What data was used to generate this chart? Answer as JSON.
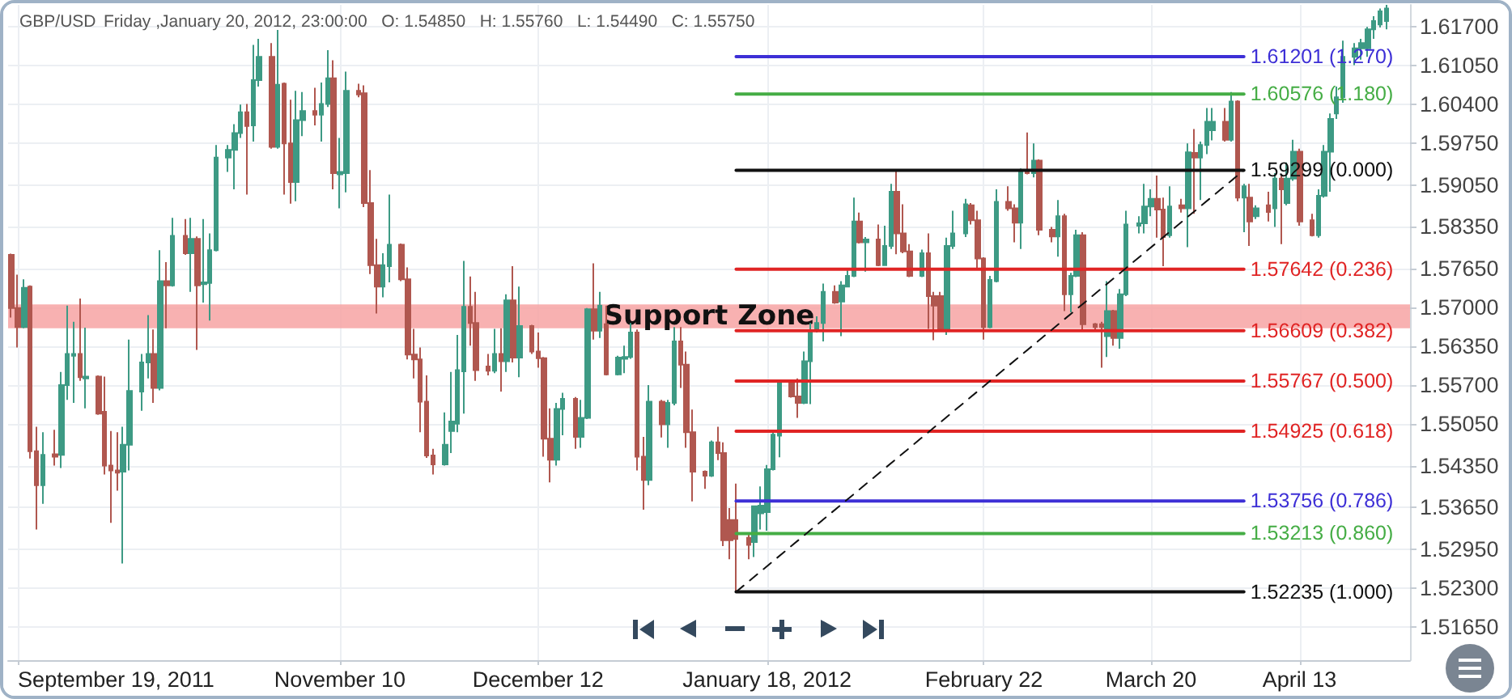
{
  "chart_data": {
    "type": "candlestick",
    "title": "GBP/USD",
    "subtitle": "Friday ,January 20, 2012, 23:00:00   O: 1.54850   H: 1.55760   L: 1.54490   C: 1.55750",
    "x": [
      "2011-09-18",
      "2011-09-19",
      "2011-09-20",
      "2011-09-21",
      "2011-09-22",
      "2011-09-23",
      "2011-09-25",
      "2011-09-26",
      "2011-09-27",
      "2011-09-28",
      "2011-09-29",
      "2011-09-30",
      "2011-10-02",
      "2011-10-03",
      "2011-10-04",
      "2011-10-05",
      "2011-10-06",
      "2011-10-07",
      "2011-10-09",
      "2011-10-10",
      "2011-10-11",
      "2011-10-12",
      "2011-10-13",
      "2011-10-14",
      "2011-10-16",
      "2011-10-17",
      "2011-10-18",
      "2011-10-19",
      "2011-10-20",
      "2011-10-21",
      "2011-10-23",
      "2011-10-24",
      "2011-10-25",
      "2011-10-26",
      "2011-10-27",
      "2011-10-28",
      "2011-10-30",
      "2011-10-31",
      "2011-11-01",
      "2011-11-02",
      "2011-11-03",
      "2011-11-04",
      "2011-11-06",
      "2011-11-07",
      "2011-11-08",
      "2011-11-09",
      "2011-11-10",
      "2011-11-11",
      "2011-11-13",
      "2011-11-14",
      "2011-11-15",
      "2011-11-16",
      "2011-11-17",
      "2011-11-18",
      "2011-11-20",
      "2011-11-21",
      "2011-11-22",
      "2011-11-23",
      "2011-11-24",
      "2011-11-25",
      "2011-11-27",
      "2011-11-28",
      "2011-11-29",
      "2011-11-30",
      "2011-12-01",
      "2011-12-02",
      "2011-12-04",
      "2011-12-05",
      "2011-12-06",
      "2011-12-07",
      "2011-12-08",
      "2011-12-09",
      "2011-12-11",
      "2011-12-12",
      "2011-12-13",
      "2011-12-14",
      "2011-12-15",
      "2011-12-16",
      "2011-12-18",
      "2011-12-19",
      "2011-12-20",
      "2011-12-21",
      "2011-12-22",
      "2011-12-23",
      "2011-12-25",
      "2011-12-26",
      "2011-12-27",
      "2011-12-28",
      "2011-12-29",
      "2011-12-30",
      "2012-01-01",
      "2012-01-02",
      "2012-01-03",
      "2012-01-04",
      "2012-01-05",
      "2012-01-06",
      "2012-01-08",
      "2012-01-09",
      "2012-01-10",
      "2012-01-11",
      "2012-01-12",
      "2012-01-13",
      "2012-01-15",
      "2012-01-16",
      "2012-01-17",
      "2012-01-18",
      "2012-01-19",
      "2012-01-20",
      "2012-01-22",
      "2012-01-23",
      "2012-01-24",
      "2012-01-25",
      "2012-01-26",
      "2012-01-27",
      "2012-01-29",
      "2012-01-30",
      "2012-01-31",
      "2012-02-01",
      "2012-02-02",
      "2012-02-03",
      "2012-02-05",
      "2012-02-06",
      "2012-02-07",
      "2012-02-08",
      "2012-02-09",
      "2012-02-10",
      "2012-02-12",
      "2012-02-13",
      "2012-02-14",
      "2012-02-15",
      "2012-02-16",
      "2012-02-17",
      "2012-02-19",
      "2012-02-20",
      "2012-02-21",
      "2012-02-22",
      "2012-02-23",
      "2012-02-24",
      "2012-02-26",
      "2012-02-27",
      "2012-02-28",
      "2012-02-29",
      "2012-03-01",
      "2012-03-02",
      "2012-03-04",
      "2012-03-05",
      "2012-03-06",
      "2012-03-07",
      "2012-03-08",
      "2012-03-09",
      "2012-03-11",
      "2012-03-12",
      "2012-03-13",
      "2012-03-14",
      "2012-03-15",
      "2012-03-16",
      "2012-03-18",
      "2012-03-19",
      "2012-03-20",
      "2012-03-21",
      "2012-03-22",
      "2012-03-23",
      "2012-03-25",
      "2012-03-26",
      "2012-03-27",
      "2012-03-28",
      "2012-03-29",
      "2012-03-30",
      "2012-04-01",
      "2012-04-02",
      "2012-04-03",
      "2012-04-04",
      "2012-04-05",
      "2012-04-06",
      "2012-04-08",
      "2012-04-09",
      "2012-04-10",
      "2012-04-11",
      "2012-04-12",
      "2012-04-13",
      "2012-04-15",
      "2012-04-16",
      "2012-04-17",
      "2012-04-18",
      "2012-04-19",
      "2012-04-20",
      "2012-04-22",
      "2012-04-23",
      "2012-04-24",
      "2012-04-25",
      "2012-04-26",
      "2012-04-27"
    ],
    "ohlc": [
      [
        1.5788,
        1.579,
        1.5683,
        1.5699
      ],
      [
        1.5699,
        1.5755,
        1.5633,
        1.5667
      ],
      [
        1.5667,
        1.5747,
        1.5665,
        1.5733
      ],
      [
        1.5735,
        1.5737,
        1.5447,
        1.5459
      ],
      [
        1.5459,
        1.55,
        1.5328,
        1.5402
      ],
      [
        1.5402,
        1.5491,
        1.5371,
        1.5453
      ],
      [
        1.5454,
        1.5495,
        1.5435,
        1.545
      ],
      [
        1.5453,
        1.5592,
        1.5431,
        1.557
      ],
      [
        1.557,
        1.5703,
        1.5545,
        1.5622
      ],
      [
        1.5619,
        1.5676,
        1.554,
        1.5622
      ],
      [
        1.5622,
        1.5715,
        1.5577,
        1.5583
      ],
      [
        1.5581,
        1.5666,
        1.5531,
        1.5584
      ],
      [
        1.5584,
        1.5586,
        1.552,
        1.5522
      ],
      [
        1.5525,
        1.5584,
        1.542,
        1.5435
      ],
      [
        1.5435,
        1.5493,
        1.5339,
        1.5427
      ],
      [
        1.5427,
        1.5491,
        1.5393,
        1.5423
      ],
      [
        1.5425,
        1.55,
        1.5271,
        1.547
      ],
      [
        1.547,
        1.5646,
        1.5427,
        1.556
      ],
      [
        1.5559,
        1.5622,
        1.5527,
        1.5608
      ],
      [
        1.5608,
        1.5687,
        1.5581,
        1.5622
      ],
      [
        1.5622,
        1.5663,
        1.554,
        1.5565
      ],
      [
        1.5565,
        1.5796,
        1.5561,
        1.5744
      ],
      [
        1.5744,
        1.5776,
        1.5665,
        1.5737
      ],
      [
        1.5737,
        1.585,
        1.5735,
        1.582
      ],
      [
        1.582,
        1.5848,
        1.5788,
        1.5791
      ],
      [
        1.5791,
        1.585,
        1.5726,
        1.5815
      ],
      [
        1.5815,
        1.5819,
        1.5629,
        1.5737
      ],
      [
        1.5739,
        1.5848,
        1.5708,
        1.5742
      ],
      [
        1.5741,
        1.5824,
        1.5678,
        1.5796
      ],
      [
        1.5796,
        1.5972,
        1.5794,
        1.5951
      ],
      [
        1.5951,
        1.5972,
        1.5927,
        1.5964
      ],
      [
        1.5964,
        1.6007,
        1.5898,
        1.5992
      ],
      [
        1.5992,
        1.604,
        1.5984,
        1.6027
      ],
      [
        1.6027,
        1.6041,
        1.5889,
        1.6004
      ],
      [
        1.6005,
        1.614,
        1.5978,
        1.6081
      ],
      [
        1.6081,
        1.615,
        1.607,
        1.612
      ],
      [
        1.612,
        1.6143,
        1.5966,
        1.5969
      ],
      [
        1.5969,
        1.6165,
        1.5966,
        1.6073
      ],
      [
        1.6075,
        1.6077,
        1.5889,
        1.5975
      ],
      [
        1.5975,
        1.6048,
        1.5874,
        1.591
      ],
      [
        1.591,
        1.6063,
        1.5878,
        1.6014
      ],
      [
        1.6014,
        1.6061,
        1.5987,
        1.6029
      ],
      [
        1.6029,
        1.6068,
        1.6005,
        1.6023
      ],
      [
        1.6023,
        1.6077,
        1.5978,
        1.6041
      ],
      [
        1.6041,
        1.6131,
        1.6036,
        1.6084
      ],
      [
        1.6084,
        1.6114,
        1.5898,
        1.5925
      ],
      [
        1.5923,
        1.5984,
        1.5866,
        1.5927
      ],
      [
        1.5925,
        1.6095,
        1.5893,
        1.6063
      ],
      [
        1.6063,
        1.6075,
        1.6052,
        1.6057
      ],
      [
        1.6059,
        1.6072,
        1.5868,
        1.5875
      ],
      [
        1.5875,
        1.593,
        1.5756,
        1.5771
      ],
      [
        1.5771,
        1.5815,
        1.569,
        1.5735
      ],
      [
        1.5735,
        1.5791,
        1.5717,
        1.5771
      ],
      [
        1.5769,
        1.5889,
        1.5742,
        1.5805
      ],
      [
        1.5805,
        1.5807,
        1.5744,
        1.5747
      ],
      [
        1.5747,
        1.5767,
        1.5613,
        1.5621
      ],
      [
        1.5621,
        1.5664,
        1.5581,
        1.5613
      ],
      [
        1.5613,
        1.5633,
        1.5491,
        1.5542
      ],
      [
        1.5542,
        1.5586,
        1.5448,
        1.5452
      ],
      [
        1.5452,
        1.5463,
        1.542,
        1.5437
      ],
      [
        1.5437,
        1.5524,
        1.5435,
        1.547
      ],
      [
        1.5493,
        1.5592,
        1.5456,
        1.5509
      ],
      [
        1.5505,
        1.5654,
        1.5491,
        1.5595
      ],
      [
        1.5593,
        1.5778,
        1.5522,
        1.5701
      ],
      [
        1.5701,
        1.5752,
        1.5636,
        1.5674
      ],
      [
        1.5674,
        1.5726,
        1.5577,
        1.5595
      ],
      [
        1.5601,
        1.5622,
        1.5586,
        1.5594
      ],
      [
        1.5594,
        1.5664,
        1.559,
        1.5622
      ],
      [
        1.5622,
        1.5665,
        1.5559,
        1.561
      ],
      [
        1.561,
        1.5722,
        1.5592,
        1.5712
      ],
      [
        1.5712,
        1.5769,
        1.5608,
        1.5616
      ],
      [
        1.5616,
        1.5735,
        1.5583,
        1.5669
      ],
      [
        1.5669,
        1.5671,
        1.5622,
        1.5626
      ],
      [
        1.5626,
        1.5658,
        1.5599,
        1.5615
      ],
      [
        1.5615,
        1.5617,
        1.545,
        1.548
      ],
      [
        1.548,
        1.5531,
        1.5407,
        1.5445
      ],
      [
        1.5445,
        1.554,
        1.5435,
        1.553
      ],
      [
        1.553,
        1.5557,
        1.5486,
        1.5547
      ],
      [
        1.5547,
        1.555,
        1.5463,
        1.5483
      ],
      [
        1.5483,
        1.5545,
        1.5465,
        1.5515
      ],
      [
        1.5515,
        1.5699,
        1.5513,
        1.5697
      ],
      [
        1.5697,
        1.5774,
        1.5646,
        1.5661
      ],
      [
        1.5661,
        1.5726,
        1.5649,
        1.5703
      ],
      [
        1.5672,
        1.5703,
        1.5586,
        1.5588
      ],
      [
        1.5588,
        1.5619,
        1.5586,
        1.5616
      ],
      [
        1.5614,
        1.5636,
        1.559,
        1.5617
      ],
      [
        1.5617,
        1.5674,
        1.5614,
        1.5658
      ],
      [
        1.5658,
        1.5663,
        1.5427,
        1.545
      ],
      [
        1.545,
        1.5483,
        1.5361,
        1.5411
      ],
      [
        1.5411,
        1.557,
        1.5402,
        1.5542
      ],
      [
        1.5542,
        1.5545,
        1.5482,
        1.5504
      ],
      [
        1.5504,
        1.5545,
        1.5465,
        1.554
      ],
      [
        1.554,
        1.5667,
        1.5536,
        1.5643
      ],
      [
        1.5643,
        1.5667,
        1.5565,
        1.5604
      ],
      [
        1.5604,
        1.5626,
        1.5465,
        1.5491
      ],
      [
        1.5491,
        1.5529,
        1.5375,
        1.5425
      ],
      [
        1.5425,
        1.5427,
        1.5396,
        1.5418
      ],
      [
        1.5418,
        1.5477,
        1.5416,
        1.5474
      ],
      [
        1.5474,
        1.55,
        1.5444,
        1.5456
      ],
      [
        1.5456,
        1.5474,
        1.53,
        1.531
      ],
      [
        1.5344,
        1.5364,
        1.5278,
        1.531
      ],
      [
        1.5344,
        1.5405,
        1.5224,
        1.5312
      ],
      [
        1.5314,
        1.5323,
        1.5278,
        1.5302
      ],
      [
        1.5307,
        1.5368,
        1.5282,
        1.5367
      ],
      [
        1.5355,
        1.54,
        1.5328,
        1.5368
      ],
      [
        1.5357,
        1.5436,
        1.5326,
        1.5429
      ],
      [
        1.5429,
        1.5495,
        1.5427,
        1.5487
      ],
      [
        1.5485,
        1.5576,
        1.5449,
        1.5575
      ],
      [
        1.5575,
        1.5578,
        1.5549,
        1.5551
      ],
      [
        1.5551,
        1.5581,
        1.5515,
        1.554
      ],
      [
        1.554,
        1.5626,
        1.5538,
        1.561
      ],
      [
        1.561,
        1.5674,
        1.5538,
        1.5661
      ],
      [
        1.5661,
        1.5685,
        1.5658,
        1.5674
      ],
      [
        1.5674,
        1.574,
        1.5643,
        1.5726
      ],
      [
        1.5726,
        1.5737,
        1.5706,
        1.5708
      ],
      [
        1.571,
        1.5744,
        1.5652,
        1.5737
      ],
      [
        1.5735,
        1.5762,
        1.5735,
        1.5753
      ],
      [
        1.5753,
        1.5884,
        1.5751,
        1.5844
      ],
      [
        1.5844,
        1.5859,
        1.5807,
        1.5809
      ],
      [
        1.5809,
        1.5818,
        1.576,
        1.5814
      ],
      [
        1.5814,
        1.5839,
        1.5769,
        1.5771
      ],
      [
        1.5771,
        1.5837,
        1.577,
        1.5803
      ],
      [
        1.5803,
        1.5907,
        1.5798,
        1.5894
      ],
      [
        1.5894,
        1.593,
        1.5789,
        1.5824
      ],
      [
        1.5824,
        1.5873,
        1.5791,
        1.5794
      ],
      [
        1.5794,
        1.5806,
        1.5751,
        1.5753
      ],
      [
        1.5753,
        1.5797,
        1.5751,
        1.5791
      ],
      [
        1.5791,
        1.5824,
        1.5664,
        1.5719
      ],
      [
        1.5719,
        1.5726,
        1.5645,
        1.5703
      ],
      [
        1.5719,
        1.5726,
        1.5661,
        1.5663
      ],
      [
        1.5663,
        1.5817,
        1.5654,
        1.5803
      ],
      [
        1.5803,
        1.5862,
        1.5798,
        1.5824
      ],
      [
        1.5824,
        1.5882,
        1.5818,
        1.5873
      ],
      [
        1.5871,
        1.5875,
        1.5839,
        1.5846
      ],
      [
        1.5846,
        1.5862,
        1.5764,
        1.5782
      ],
      [
        1.5782,
        1.5784,
        1.5646,
        1.5667
      ],
      [
        1.5667,
        1.5753,
        1.5665,
        1.5746
      ],
      [
        1.5744,
        1.5898,
        1.5742,
        1.5877
      ],
      [
        1.5877,
        1.5903,
        1.5862,
        1.5866
      ],
      [
        1.5866,
        1.5873,
        1.5809,
        1.5842
      ],
      [
        1.5842,
        1.5933,
        1.5798,
        1.5927
      ],
      [
        1.593,
        1.5993,
        1.5923,
        1.5925
      ],
      [
        1.5925,
        1.5975,
        1.5918,
        1.5946
      ],
      [
        1.5946,
        1.5948,
        1.5821,
        1.583
      ],
      [
        1.583,
        1.5835,
        1.5809,
        1.5819
      ],
      [
        1.5819,
        1.588,
        1.5785,
        1.5853
      ],
      [
        1.5853,
        1.5857,
        1.5694,
        1.5722
      ],
      [
        1.5722,
        1.5758,
        1.5692,
        1.5753
      ],
      [
        1.5753,
        1.583,
        1.5751,
        1.5821
      ],
      [
        1.5821,
        1.5826,
        1.5661,
        1.5672
      ],
      [
        1.5672,
        1.5674,
        1.5661,
        1.5667
      ],
      [
        1.5672,
        1.5676,
        1.5599,
        1.5667
      ],
      [
        1.5652,
        1.5744,
        1.5617,
        1.5694
      ],
      [
        1.5694,
        1.5696,
        1.5636,
        1.5649
      ],
      [
        1.5649,
        1.5731,
        1.5631,
        1.5722
      ],
      [
        1.5722,
        1.5862,
        1.5719,
        1.5839
      ],
      [
        1.5837,
        1.5853,
        1.5824,
        1.5841
      ],
      [
        1.5841,
        1.5907,
        1.5824,
        1.5869
      ],
      [
        1.5869,
        1.5898,
        1.5853,
        1.5882
      ],
      [
        1.5882,
        1.5921,
        1.5817,
        1.5864
      ],
      [
        1.5864,
        1.5884,
        1.5769,
        1.5818
      ],
      [
        1.5821,
        1.5903,
        1.5817,
        1.5869
      ],
      [
        1.5871,
        1.5882,
        1.5859,
        1.5866
      ],
      [
        1.5866,
        1.5975,
        1.5801,
        1.596
      ],
      [
        1.5959,
        1.5999,
        1.5857,
        1.5951
      ],
      [
        1.5951,
        1.5978,
        1.588,
        1.5972
      ],
      [
        1.5972,
        1.6034,
        1.5957,
        1.6011
      ],
      [
        1.5997,
        1.6034,
        1.598,
        1.6011
      ],
      [
        1.6011,
        1.6034,
        1.5978,
        1.5981
      ],
      [
        1.5981,
        1.6061,
        1.5978,
        1.6045
      ],
      [
        1.6045,
        1.6047,
        1.5878,
        1.5884
      ],
      [
        1.5884,
        1.5907,
        1.5826,
        1.5903
      ],
      [
        1.5884,
        1.5907,
        1.5803,
        1.5844
      ],
      [
        1.5853,
        1.5871,
        1.5848,
        1.5866
      ],
      [
        1.5871,
        1.5894,
        1.5844,
        1.586
      ],
      [
        1.5866,
        1.5925,
        1.5835,
        1.5916
      ],
      [
        1.5916,
        1.5921,
        1.5806,
        1.5898
      ],
      [
        1.5875,
        1.5943,
        1.5871,
        1.5916
      ],
      [
        1.5916,
        1.5981,
        1.5912,
        1.5961
      ],
      [
        1.5961,
        1.5966,
        1.5837,
        1.5844
      ],
      [
        1.5846,
        1.5857,
        1.5819,
        1.5821
      ],
      [
        1.5821,
        1.5898,
        1.5817,
        1.5887
      ],
      [
        1.5887,
        1.5972,
        1.5884,
        1.5961
      ],
      [
        1.5961,
        1.6025,
        1.5894,
        1.6016
      ],
      [
        1.6025,
        1.607,
        1.6016,
        1.6052
      ],
      [
        1.6052,
        1.6147,
        1.6043,
        1.612
      ],
      [
        1.612,
        1.6143,
        1.6106,
        1.6134
      ],
      [
        1.6134,
        1.615,
        1.6115,
        1.6143
      ],
      [
        1.6134,
        1.617,
        1.612,
        1.6166
      ],
      [
        1.6166,
        1.6188,
        1.615,
        1.618
      ],
      [
        1.6174,
        1.6201,
        1.6169,
        1.6196
      ],
      [
        1.618,
        1.6207,
        1.6166,
        1.6201
      ]
    ],
    "colors": [
      "#b0574f",
      "#b0574f",
      "#3d9a84",
      "#b0574f",
      "#b0574f",
      "#3d9a84",
      "#b0574f",
      "#3d9a84",
      "#3d9a84",
      "#3d9a84",
      "#b0574f",
      "#3d9a84",
      "#b0574f",
      "#b0574f",
      "#b0574f",
      "#b0574f",
      "#3d9a84",
      "#3d9a84",
      "#3d9a84",
      "#3d9a84",
      "#b0574f",
      "#3d9a84",
      "#b0574f",
      "#3d9a84",
      "#b0574f",
      "#3d9a84",
      "#b0574f",
      "#3d9a84",
      "#3d9a84",
      "#3d9a84",
      "#3d9a84",
      "#3d9a84",
      "#3d9a84",
      "#b0574f",
      "#3d9a84",
      "#3d9a84",
      "#b0574f",
      "#3d9a84",
      "#b0574f",
      "#b0574f",
      "#3d9a84",
      "#3d9a84",
      "#b0574f",
      "#3d9a84",
      "#3d9a84",
      "#b0574f",
      "#3d9a84",
      "#3d9a84",
      "#b0574f",
      "#b0574f",
      "#b0574f",
      "#b0574f",
      "#3d9a84",
      "#3d9a84",
      "#b0574f",
      "#b0574f",
      "#b0574f",
      "#b0574f",
      "#b0574f",
      "#b0574f",
      "#3d9a84",
      "#3d9a84",
      "#3d9a84",
      "#3d9a84",
      "#b0574f",
      "#b0574f",
      "#b0574f",
      "#3d9a84",
      "#b0574f",
      "#3d9a84",
      "#b0574f",
      "#3d9a84",
      "#b0574f",
      "#b0574f",
      "#b0574f",
      "#b0574f",
      "#3d9a84",
      "#3d9a84",
      "#b0574f",
      "#3d9a84",
      "#3d9a84",
      "#b0574f",
      "#3d9a84",
      "#b0574f",
      "#3d9a84",
      "#3d9a84",
      "#3d9a84",
      "#b0574f",
      "#b0574f",
      "#3d9a84",
      "#b0574f",
      "#3d9a84",
      "#3d9a84",
      "#b0574f",
      "#b0574f",
      "#b0574f",
      "#b0574f",
      "#3d9a84",
      "#b0574f",
      "#b0574f",
      "#b0574f",
      "#b0574f",
      "#b0574f",
      "#3d9a84",
      "#3d9a84",
      "#3d9a84",
      "#3d9a84",
      "#3d9a84",
      "#b0574f",
      "#b0574f",
      "#3d9a84",
      "#3d9a84",
      "#3d9a84",
      "#3d9a84",
      "#b0574f",
      "#3d9a84",
      "#3d9a84",
      "#3d9a84",
      "#b0574f",
      "#3d9a84",
      "#b0574f",
      "#3d9a84",
      "#3d9a84",
      "#b0574f",
      "#b0574f",
      "#b0574f",
      "#3d9a84",
      "#b0574f",
      "#b0574f",
      "#b0574f",
      "#3d9a84",
      "#3d9a84",
      "#3d9a84",
      "#b0574f",
      "#b0574f",
      "#b0574f",
      "#3d9a84",
      "#3d9a84",
      "#b0574f",
      "#b0574f",
      "#3d9a84",
      "#b0574f",
      "#3d9a84",
      "#b0574f",
      "#b0574f",
      "#3d9a84",
      "#b0574f",
      "#3d9a84",
      "#3d9a84",
      "#b0574f",
      "#b0574f",
      "#b0574f",
      "#3d9a84",
      "#b0574f",
      "#3d9a84",
      "#3d9a84",
      "#3d9a84",
      "#3d9a84",
      "#3d9a84",
      "#b0574f",
      "#b0574f",
      "#3d9a84",
      "#b0574f",
      "#3d9a84",
      "#b0574f",
      "#3d9a84",
      "#3d9a84",
      "#3d9a84",
      "#b0574f",
      "#3d9a84",
      "#b0574f",
      "#3d9a84",
      "#b0574f",
      "#3d9a84",
      "#b0574f",
      "#3d9a84",
      "#b0574f",
      "#3d9a84",
      "#3d9a84",
      "#b0574f",
      "#b0574f",
      "#3d9a84",
      "#3d9a84",
      "#3d9a84",
      "#3d9a84",
      "#3d9a84",
      "#3d9a84",
      "#3d9a84",
      "#3d9a84",
      "#3d9a84",
      "#3d9a84",
      "#3d9a84"
    ],
    "series": [
      {
        "type": "line",
        "name": "1.61201 (1.270)",
        "color": "#3d2fd6",
        "x": [
          "2012-01-13",
          "2012-04-04"
        ],
        "values": [
          1.61201,
          1.61201
        ]
      },
      {
        "type": "line",
        "name": "1.60576 (1.180)",
        "color": "#45ad45",
        "x": [
          "2012-01-13",
          "2012-04-04"
        ],
        "values": [
          1.60576,
          1.60576
        ]
      },
      {
        "type": "line",
        "name": "1.59299 (0.000)",
        "color": "#111111",
        "x": [
          "2012-01-13",
          "2012-04-04"
        ],
        "values": [
          1.59299,
          1.59299
        ]
      },
      {
        "type": "line",
        "name": "1.57642 (0.236)",
        "color": "#e02424",
        "x": [
          "2012-01-13",
          "2012-04-04"
        ],
        "values": [
          1.57642,
          1.57642
        ]
      },
      {
        "type": "line",
        "name": "1.56609 (0.382)",
        "color": "#e02424",
        "x": [
          "2012-01-13",
          "2012-04-04"
        ],
        "values": [
          1.56609,
          1.56609
        ]
      },
      {
        "type": "line",
        "name": "1.55767 (0.500)",
        "color": "#e02424",
        "x": [
          "2012-01-13",
          "2012-04-04"
        ],
        "values": [
          1.55767,
          1.55767
        ]
      },
      {
        "type": "line",
        "name": "1.54925 (0.618)",
        "color": "#e02424",
        "x": [
          "2012-01-13",
          "2012-04-04"
        ],
        "values": [
          1.54925,
          1.54925
        ]
      },
      {
        "type": "line",
        "name": "1.53756 (0.786)",
        "color": "#3d2fd6",
        "x": [
          "2012-01-13",
          "2012-04-04"
        ],
        "values": [
          1.53756,
          1.53756
        ]
      },
      {
        "type": "line",
        "name": "1.53213 (0.860)",
        "color": "#45ad45",
        "x": [
          "2012-01-13",
          "2012-04-04"
        ],
        "values": [
          1.53213,
          1.53213
        ]
      },
      {
        "type": "line",
        "name": "1.52235 (1.000)",
        "color": "#111111",
        "x": [
          "2012-01-13",
          "2012-04-04"
        ],
        "values": [
          1.52235,
          1.52235
        ]
      },
      {
        "type": "line",
        "color": "#111111",
        "line_style": "dashed",
        "x": [
          "2012-01-13",
          "2012-04-04"
        ],
        "values": [
          1.52235,
          1.59299
        ]
      }
    ],
    "bands": [
      {
        "axis": "y",
        "from": 1.5665,
        "to": 1.5705,
        "label": "Support Zone",
        "color": "#f7a3a3"
      }
    ],
    "xlim": [
      "2011-09-17T10:00",
      "2012-04-30T20:00"
    ],
    "xticks": [
      {
        "value": "2011-09-19",
        "label": "September 19, 2011"
      },
      {
        "value": "2011-11-10",
        "label": "November 10"
      },
      {
        "value": "2011-12-12",
        "label": "December 12"
      },
      {
        "value": "2012-01-18",
        "label": "January 18, 2012"
      },
      {
        "value": "2012-02-22",
        "label": "February 22"
      },
      {
        "value": "2012-03-20",
        "label": "March 20"
      },
      {
        "value": "2012-04-13",
        "label": "April 13"
      }
    ],
    "ylim": [
      1.5109,
      1.6207
    ],
    "yticks": [
      {
        "value": 1.5165,
        "label": "1.51650"
      },
      {
        "value": 1.523,
        "label": "1.52300"
      },
      {
        "value": 1.5295,
        "label": "1.52950"
      },
      {
        "value": 1.5365,
        "label": "1.53650"
      },
      {
        "value": 1.5435,
        "label": "1.54350"
      },
      {
        "value": 1.5505,
        "label": "1.55050"
      },
      {
        "value": 1.557,
        "label": "1.55700"
      },
      {
        "value": 1.5635,
        "label": "1.56350"
      },
      {
        "value": 1.57,
        "label": "1.57000"
      },
      {
        "value": 1.5765,
        "label": "1.57650"
      },
      {
        "value": 1.5835,
        "label": "1.58350"
      },
      {
        "value": 1.5905,
        "label": "1.59050"
      },
      {
        "value": 1.5975,
        "label": "1.59750"
      },
      {
        "value": 1.604,
        "label": "1.60400"
      },
      {
        "value": 1.6105,
        "label": "1.61050"
      },
      {
        "value": 1.617,
        "label": "1.61700"
      }
    ],
    "grid": true,
    "legend": false,
    "marker": "none"
  }
}
